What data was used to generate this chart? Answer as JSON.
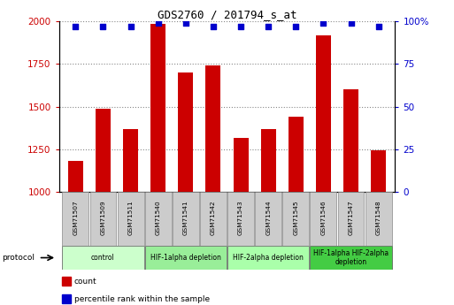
{
  "title": "GDS2760 / 201794_s_at",
  "samples": [
    "GSM71507",
    "GSM71509",
    "GSM71511",
    "GSM71540",
    "GSM71541",
    "GSM71542",
    "GSM71543",
    "GSM71544",
    "GSM71545",
    "GSM71546",
    "GSM71547",
    "GSM71548"
  ],
  "counts": [
    1185,
    1490,
    1370,
    1985,
    1700,
    1740,
    1315,
    1370,
    1440,
    1920,
    1600,
    1245
  ],
  "percentiles": [
    97,
    97,
    97,
    99,
    99,
    97,
    97,
    97,
    97,
    99,
    99,
    97
  ],
  "ylim_left": [
    1000,
    2000
  ],
  "ylim_right": [
    0,
    100
  ],
  "yticks_left": [
    1000,
    1250,
    1500,
    1750,
    2000
  ],
  "yticks_right": [
    0,
    25,
    50,
    75,
    100
  ],
  "bar_color": "#cc0000",
  "dot_color": "#0000cc",
  "bar_width": 0.55,
  "protocol_groups": [
    {
      "label": "control",
      "indices": [
        0,
        1,
        2
      ],
      "color": "#ccffcc"
    },
    {
      "label": "HIF-1alpha depletion",
      "indices": [
        3,
        4,
        5
      ],
      "color": "#99ee99"
    },
    {
      "label": "HIF-2alpha depletion",
      "indices": [
        6,
        7,
        8
      ],
      "color": "#aaffaa"
    },
    {
      "label": "HIF-1alpha HIF-2alpha\ndepletion",
      "indices": [
        9,
        10,
        11
      ],
      "color": "#44cc44"
    }
  ],
  "protocol_label": "protocol",
  "legend_count_label": "count",
  "legend_pct_label": "percentile rank within the sample",
  "grid_color": "#888888",
  "tick_label_color_left": "#cc0000",
  "tick_label_color_right": "#0000cc",
  "sample_box_color": "#cccccc",
  "sample_box_edge": "#888888"
}
